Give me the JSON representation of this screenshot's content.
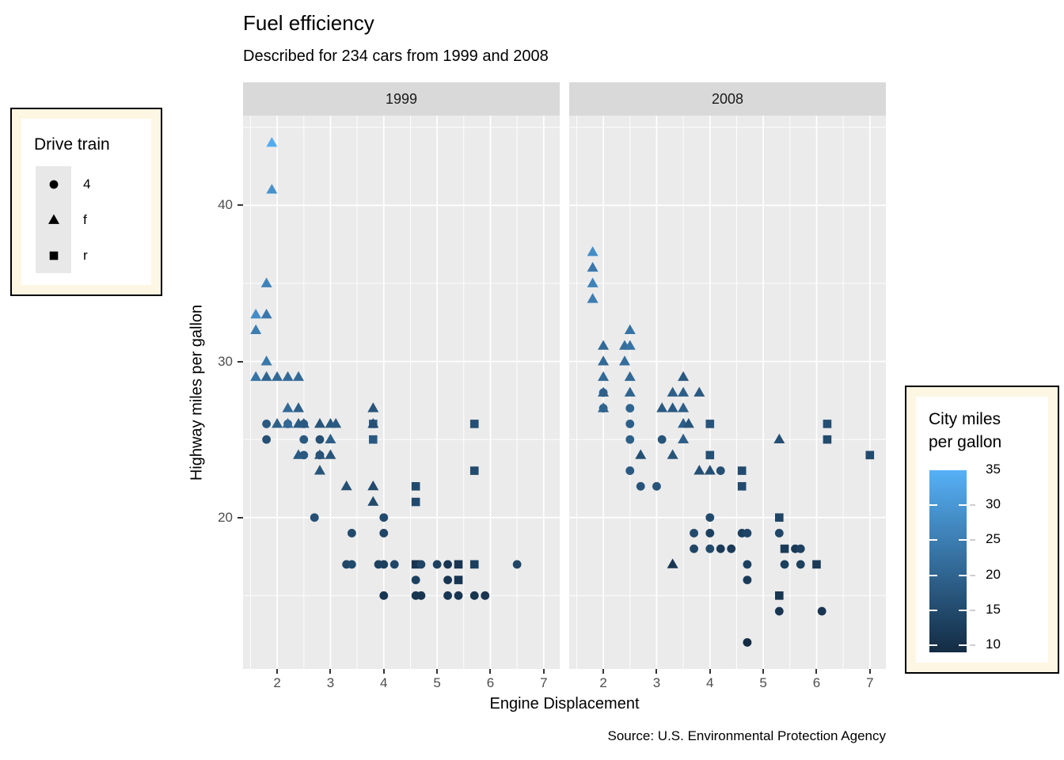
{
  "header": {
    "title": "Fuel efficiency",
    "subtitle": "Described for 234 cars from 1999 and 2008",
    "caption": "Source: U.S. Environmental Protection Agency"
  },
  "axes": {
    "x_label": "Engine Displacement",
    "y_label": "Highway miles per gallon"
  },
  "legend_drive": {
    "title": "Drive train",
    "items": [
      {
        "label": "4",
        "shape": "circle"
      },
      {
        "label": "f",
        "shape": "triangle"
      },
      {
        "label": "r",
        "shape": "square"
      }
    ]
  },
  "legend_city": {
    "title_line1": "City miles",
    "title_line2": "per gallon",
    "tick_values": [
      35,
      30,
      25,
      20,
      15,
      10
    ],
    "bar_top_value": 35,
    "bar_bottom_value": 9
  },
  "colors": {
    "panel_bg": "#EBEBEB",
    "strip_bg": "#D9D9D9",
    "grid": "#FFFFFF",
    "tick_label": "#4D4D4D",
    "legend_bg": "#FDF6E3",
    "legend_border": "#000000",
    "key_bg": "#E8E8E8"
  },
  "chart_data": {
    "type": "scatter",
    "title": "Fuel efficiency",
    "subtitle": "Described for 234 cars from 1999 and 2008",
    "xlabel": "Engine Displacement",
    "ylabel": "Highway miles per gallon",
    "x_domain": [
      1.36,
      7.3
    ],
    "y_domain": [
      10.3,
      45.75
    ],
    "x_ticks": [
      2,
      3,
      4,
      5,
      6,
      7
    ],
    "x_minor": [
      1.5,
      2.5,
      3.5,
      4.5,
      5.5,
      6.5
    ],
    "y_ticks": [
      20,
      30,
      40
    ],
    "y_minor": [
      15,
      25,
      35,
      45
    ],
    "grid": true,
    "color_scale": {
      "domain": [
        9,
        35
      ],
      "low": "#132B43",
      "high": "#56B1F7"
    },
    "shape_map": {
      "4": "circle",
      "f": "triangle",
      "r": "square"
    },
    "point_fields": [
      "displ",
      "hwy",
      "drv",
      "cty"
    ],
    "facets": [
      {
        "label": "1999",
        "points": [
          [
            3.8,
            26,
            "r",
            18
          ],
          [
            3.8,
            25,
            "r",
            18
          ],
          [
            5.7,
            26,
            "r",
            16
          ],
          [
            5.7,
            23,
            "r",
            15
          ],
          [
            4.6,
            22,
            "r",
            15
          ],
          [
            4.6,
            21,
            "r",
            15
          ],
          [
            4.6,
            17,
            "r",
            11
          ],
          [
            5.4,
            17,
            "r",
            11
          ],
          [
            5.7,
            17,
            "r",
            13
          ],
          [
            5.4,
            16,
            "r",
            11
          ],
          [
            1.8,
            26,
            "4",
            18
          ],
          [
            2.2,
            26,
            "4",
            20
          ],
          [
            2.5,
            26,
            "4",
            19
          ],
          [
            1.8,
            25,
            "4",
            16
          ],
          [
            2.5,
            25,
            "4",
            18
          ],
          [
            2.8,
            25,
            "4",
            16
          ],
          [
            2.5,
            24,
            "4",
            18
          ],
          [
            2.8,
            24,
            "4",
            15
          ],
          [
            2.7,
            20,
            "4",
            16
          ],
          [
            4.0,
            20,
            "4",
            15
          ],
          [
            3.4,
            19,
            "4",
            15
          ],
          [
            4.0,
            19,
            "4",
            14
          ],
          [
            3.3,
            17,
            "4",
            14
          ],
          [
            3.4,
            17,
            "4",
            15
          ],
          [
            3.9,
            17,
            "4",
            13
          ],
          [
            4.0,
            17,
            "4",
            13
          ],
          [
            4.2,
            17,
            "4",
            14
          ],
          [
            4.7,
            17,
            "4",
            14
          ],
          [
            5.0,
            17,
            "4",
            13
          ],
          [
            5.2,
            17,
            "4",
            11
          ],
          [
            6.5,
            17,
            "4",
            14
          ],
          [
            4.6,
            16,
            "4",
            13
          ],
          [
            5.2,
            16,
            "4",
            11
          ],
          [
            4.0,
            15,
            "4",
            11
          ],
          [
            4.6,
            15,
            "4",
            11
          ],
          [
            4.7,
            15,
            "4",
            11
          ],
          [
            5.2,
            15,
            "4",
            11
          ],
          [
            5.4,
            15,
            "4",
            11
          ],
          [
            5.7,
            15,
            "4",
            11
          ],
          [
            5.9,
            15,
            "4",
            11
          ],
          [
            1.9,
            44,
            "f",
            34
          ],
          [
            1.9,
            41,
            "f",
            29
          ],
          [
            1.8,
            35,
            "f",
            26
          ],
          [
            1.6,
            33,
            "f",
            28
          ],
          [
            1.8,
            33,
            "f",
            24
          ],
          [
            1.6,
            32,
            "f",
            25
          ],
          [
            1.8,
            30,
            "f",
            24
          ],
          [
            1.6,
            29,
            "f",
            23
          ],
          [
            1.8,
            29,
            "f",
            20
          ],
          [
            2.0,
            29,
            "f",
            21
          ],
          [
            2.2,
            29,
            "f",
            21
          ],
          [
            2.4,
            29,
            "f",
            21
          ],
          [
            2.2,
            27,
            "f",
            21
          ],
          [
            2.4,
            27,
            "f",
            19
          ],
          [
            3.8,
            27,
            "f",
            17
          ],
          [
            2.0,
            26,
            "f",
            19
          ],
          [
            2.2,
            26,
            "f",
            21
          ],
          [
            2.4,
            26,
            "f",
            18
          ],
          [
            2.5,
            26,
            "f",
            18
          ],
          [
            2.8,
            26,
            "f",
            17
          ],
          [
            3.0,
            26,
            "f",
            18
          ],
          [
            3.1,
            26,
            "f",
            18
          ],
          [
            3.8,
            26,
            "f",
            16
          ],
          [
            3.0,
            25,
            "f",
            19
          ],
          [
            2.4,
            24,
            "f",
            18
          ],
          [
            2.8,
            24,
            "f",
            17
          ],
          [
            3.0,
            24,
            "f",
            17
          ],
          [
            2.8,
            23,
            "f",
            17
          ],
          [
            3.3,
            22,
            "f",
            16
          ],
          [
            3.8,
            22,
            "f",
            15
          ],
          [
            3.8,
            21,
            "f",
            15
          ]
        ]
      },
      {
        "label": "2008",
        "points": [
          [
            4.0,
            26,
            "r",
            17
          ],
          [
            6.2,
            26,
            "r",
            16
          ],
          [
            6.2,
            25,
            "r",
            15
          ],
          [
            4.0,
            24,
            "r",
            16
          ],
          [
            7.0,
            24,
            "r",
            15
          ],
          [
            4.6,
            23,
            "r",
            15
          ],
          [
            4.6,
            22,
            "r",
            15
          ],
          [
            5.3,
            20,
            "r",
            14
          ],
          [
            5.4,
            18,
            "r",
            12
          ],
          [
            6.0,
            17,
            "r",
            12
          ],
          [
            5.3,
            15,
            "r",
            11
          ],
          [
            2.0,
            28,
            "4",
            20
          ],
          [
            2.0,
            27,
            "4",
            19
          ],
          [
            2.5,
            27,
            "4",
            20
          ],
          [
            2.5,
            26,
            "4",
            19
          ],
          [
            2.5,
            25,
            "4",
            19
          ],
          [
            3.1,
            25,
            "4",
            17
          ],
          [
            2.5,
            23,
            "4",
            18
          ],
          [
            4.2,
            23,
            "4",
            16
          ],
          [
            2.7,
            22,
            "4",
            17
          ],
          [
            3.0,
            22,
            "4",
            17
          ],
          [
            4.0,
            20,
            "4",
            15
          ],
          [
            3.7,
            19,
            "4",
            15
          ],
          [
            4.0,
            19,
            "4",
            13
          ],
          [
            4.6,
            19,
            "4",
            13
          ],
          [
            4.7,
            19,
            "4",
            14
          ],
          [
            5.3,
            19,
            "4",
            14
          ],
          [
            3.7,
            18,
            "4",
            14
          ],
          [
            4.0,
            18,
            "4",
            15
          ],
          [
            4.2,
            18,
            "4",
            12
          ],
          [
            4.4,
            18,
            "4",
            12
          ],
          [
            5.6,
            18,
            "4",
            12
          ],
          [
            5.7,
            18,
            "4",
            13
          ],
          [
            4.7,
            17,
            "4",
            13
          ],
          [
            5.4,
            17,
            "4",
            13
          ],
          [
            5.7,
            17,
            "4",
            13
          ],
          [
            4.7,
            16,
            "4",
            12
          ],
          [
            5.3,
            14,
            "4",
            11
          ],
          [
            6.1,
            14,
            "4",
            11
          ],
          [
            4.7,
            12,
            "4",
            9
          ],
          [
            1.8,
            37,
            "f",
            28
          ],
          [
            1.8,
            36,
            "f",
            24
          ],
          [
            1.8,
            35,
            "f",
            26
          ],
          [
            1.8,
            34,
            "f",
            25
          ],
          [
            2.5,
            32,
            "f",
            23
          ],
          [
            2.0,
            31,
            "f",
            21
          ],
          [
            2.4,
            31,
            "f",
            22
          ],
          [
            2.5,
            31,
            "f",
            23
          ],
          [
            2.0,
            30,
            "f",
            21
          ],
          [
            2.4,
            30,
            "f",
            22
          ],
          [
            2.0,
            29,
            "f",
            21
          ],
          [
            2.5,
            29,
            "f",
            21
          ],
          [
            3.5,
            29,
            "f",
            18
          ],
          [
            2.0,
            28,
            "f",
            19
          ],
          [
            2.5,
            28,
            "f",
            20
          ],
          [
            3.3,
            28,
            "f",
            19
          ],
          [
            3.5,
            28,
            "f",
            19
          ],
          [
            3.8,
            28,
            "f",
            18
          ],
          [
            2.0,
            27,
            "f",
            20
          ],
          [
            3.1,
            27,
            "f",
            18
          ],
          [
            3.3,
            27,
            "f",
            18
          ],
          [
            3.5,
            27,
            "f",
            19
          ],
          [
            3.5,
            26,
            "f",
            19
          ],
          [
            3.6,
            26,
            "f",
            17
          ],
          [
            3.5,
            25,
            "f",
            19
          ],
          [
            5.3,
            25,
            "f",
            16
          ],
          [
            2.7,
            24,
            "f",
            16
          ],
          [
            3.3,
            24,
            "f",
            17
          ],
          [
            3.8,
            23,
            "f",
            16
          ],
          [
            4.0,
            23,
            "f",
            16
          ],
          [
            3.3,
            17,
            "f",
            11
          ]
        ]
      }
    ]
  }
}
